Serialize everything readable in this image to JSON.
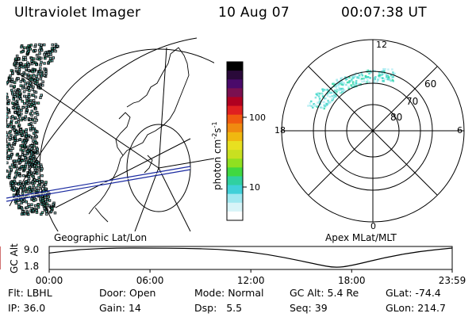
{
  "header": {
    "title": "Ultraviolet Imager",
    "date": "10 Aug 07",
    "time": "00:07:38 UT"
  },
  "colorbar": {
    "unit": "photon cm",
    "unit_sup1": "-2",
    "unit_mid": "s",
    "unit_sup2": "-1",
    "ticks": [
      "100",
      "10"
    ],
    "colors": [
      "#000000",
      "#2a0a3a",
      "#4a0a6a",
      "#7a1050",
      "#b00020",
      "#e02020",
      "#f05a10",
      "#f08a10",
      "#f0b810",
      "#e8e020",
      "#c8e020",
      "#90e020",
      "#40d840",
      "#30d0a0",
      "#40d0d8",
      "#a0e8f0",
      "#d8f4f8",
      "#ffffff"
    ]
  },
  "geo_panel": {
    "label": "Geographic Lat/Lon",
    "aurora_color": "#40d8c8",
    "track_color": "#1a2aa0"
  },
  "apex_panel": {
    "label": "Apex MLat/MLT",
    "mlt_labels": {
      "top": "12",
      "left": "18",
      "right": "6",
      "bottom": "0"
    },
    "lat_labels": [
      "60",
      "70",
      "80"
    ]
  },
  "altitude_chart": {
    "ylabel": "GC Alt",
    "y_ticks": [
      "9.0",
      "1.8"
    ],
    "x_ticks": [
      "00:00",
      "06:00",
      "12:00",
      "18:00",
      "23:59"
    ],
    "marker_color": "#c04040",
    "ylim": [
      1.8,
      9.0
    ]
  },
  "chart_data": {
    "type": "line",
    "xlabel": "",
    "ylabel": "GC Alt",
    "x_range": [
      "00:00",
      "23:59"
    ],
    "ylim": [
      1.8,
      9.0
    ],
    "series": [
      {
        "x": [
          "00:00",
          "02:00",
          "04:00",
          "06:00",
          "08:00",
          "10:00",
          "12:00",
          "14:00",
          "16:00",
          "17:00",
          "18:00",
          "20:00",
          "22:00",
          "23:59"
        ],
        "values": [
          7.2,
          8.6,
          9.0,
          9.0,
          8.9,
          8.6,
          7.6,
          5.6,
          3.0,
          1.8,
          2.6,
          5.6,
          7.8,
          9.0
        ]
      }
    ]
  },
  "status": {
    "flt_label": "Flt:",
    "flt_value": "LBHL",
    "door_label": "Door:",
    "door_value": "Open",
    "mode_label": "Mode:",
    "mode_value": "Normal",
    "gcalt_label": "GC Alt:",
    "gcalt_value": "5.4 Re",
    "glat_label": "GLat:",
    "glat_value": "-74.4",
    "ip_label": "IP:",
    "ip_value": "36.0",
    "gain_label": "Gain:",
    "gain_value": "14",
    "dsp_label": "Dsp:",
    "dsp_value": "5.5",
    "seq_label": "Seq:",
    "seq_value": "39",
    "glon_label": "GLon:",
    "glon_value": "214.7"
  }
}
